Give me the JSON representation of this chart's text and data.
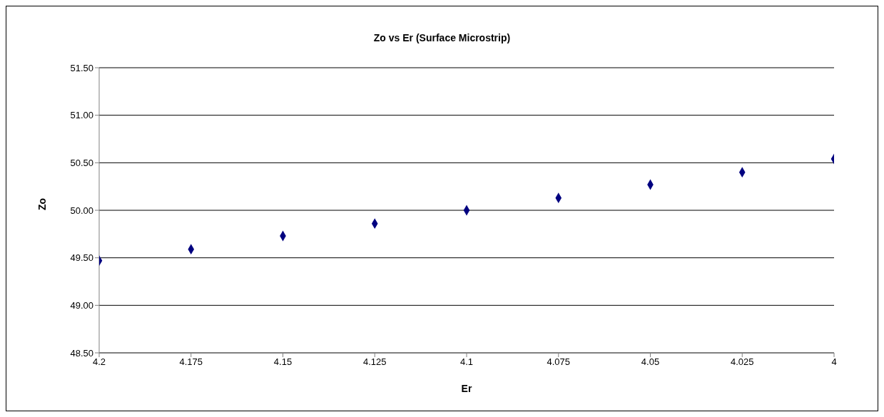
{
  "chart_data": {
    "type": "scatter",
    "title": "Zo vs Er (Surface Microstrip)",
    "xlabel": "Er",
    "ylabel": "Zo",
    "x": [
      4.2,
      4.175,
      4.15,
      4.125,
      4.1,
      4.075,
      4.05,
      4.025,
      4
    ],
    "series": [
      {
        "color": "#000080",
        "values": [
          49.47,
          49.59,
          49.73,
          49.86,
          50.0,
          50.13,
          50.27,
          50.4,
          50.54
        ]
      }
    ],
    "xlim": [
      4.2,
      4
    ],
    "xticks": [
      4.2,
      4.175,
      4.15,
      4.125,
      4.1,
      4.075,
      4.05,
      4.025,
      4
    ],
    "ylim": [
      48.5,
      51.5
    ],
    "yticks": [
      {
        "value": 48.5,
        "label": "48.50"
      },
      {
        "value": 49,
        "label": "49.00"
      },
      {
        "value": 49.5,
        "label": "49.50"
      },
      {
        "value": 50,
        "label": "50.00"
      },
      {
        "value": 50.5,
        "label": "50.50"
      },
      {
        "value": 51,
        "label": "51.00"
      },
      {
        "value": 51.5,
        "label": "51.50"
      }
    ],
    "grid": "y",
    "marker": "diamond",
    "legend": false
  }
}
